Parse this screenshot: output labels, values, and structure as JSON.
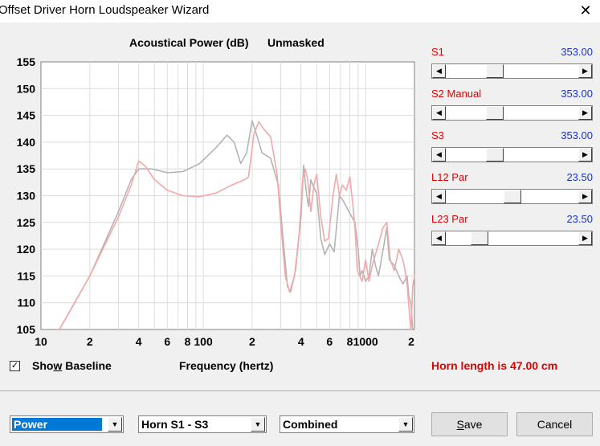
{
  "window": {
    "title": "Offset Driver Horn Loudspeaker Wizard",
    "close_glyph": "✕"
  },
  "chart_title": {
    "quantity": "Acoustical Power (dB)",
    "mode": "Unmasked"
  },
  "chart_data": {
    "type": "line",
    "xscale": "log",
    "xlim": [
      10,
      2000
    ],
    "ylim": [
      105,
      155
    ],
    "grid": true,
    "xlabel": "Frequency (hertz)",
    "ylabel": "",
    "y_ticks": [
      "155",
      "150",
      "145",
      "140",
      "135",
      "130",
      "125",
      "120",
      "115",
      "110",
      "105"
    ],
    "x_ticks": [
      {
        "v": 10,
        "label": "10"
      },
      {
        "v": 20,
        "label": "2"
      },
      {
        "v": 40,
        "label": "4"
      },
      {
        "v": 60,
        "label": "6"
      },
      {
        "v": 80,
        "label": "8"
      },
      {
        "v": 100,
        "label": "100"
      },
      {
        "v": 200,
        "label": "2"
      },
      {
        "v": 400,
        "label": "4"
      },
      {
        "v": 600,
        "label": "6"
      },
      {
        "v": 800,
        "label": "8"
      },
      {
        "v": 1000,
        "label": "1000"
      },
      {
        "v": 2000,
        "label": "2"
      }
    ],
    "series": [
      {
        "color": "#b4b4b4",
        "points": [
          [
            13,
            105
          ],
          [
            20,
            115
          ],
          [
            30,
            127
          ],
          [
            36,
            133
          ],
          [
            40,
            135
          ],
          [
            48,
            135
          ],
          [
            60,
            134.3
          ],
          [
            75,
            134.5
          ],
          [
            95,
            136
          ],
          [
            120,
            139
          ],
          [
            140,
            141.3
          ],
          [
            155,
            140
          ],
          [
            170,
            136
          ],
          [
            185,
            138
          ],
          [
            200,
            144
          ],
          [
            215,
            141
          ],
          [
            230,
            138
          ],
          [
            260,
            137
          ],
          [
            290,
            132
          ],
          [
            310,
            122
          ],
          [
            330,
            113
          ],
          [
            345,
            112
          ],
          [
            370,
            116
          ],
          [
            400,
            126
          ],
          [
            415,
            135.7
          ],
          [
            430,
            131
          ],
          [
            445,
            128
          ],
          [
            460,
            133
          ],
          [
            480,
            131.5
          ],
          [
            500,
            130.5
          ],
          [
            530,
            122
          ],
          [
            560,
            119
          ],
          [
            600,
            121
          ],
          [
            640,
            119.5
          ],
          [
            690,
            130
          ],
          [
            730,
            129
          ],
          [
            790,
            127
          ],
          [
            860,
            125
          ],
          [
            900,
            120
          ],
          [
            925,
            115
          ],
          [
            950,
            116
          ],
          [
            1000,
            114
          ],
          [
            1050,
            115
          ],
          [
            1100,
            120
          ],
          [
            1150,
            117
          ],
          [
            1200,
            115
          ],
          [
            1300,
            121
          ],
          [
            1350,
            124
          ],
          [
            1400,
            118
          ],
          [
            1500,
            117
          ],
          [
            1600,
            115
          ],
          [
            1700,
            113.5
          ],
          [
            1800,
            115
          ],
          [
            1850,
            111
          ],
          [
            1900,
            110
          ],
          [
            1950,
            105
          ]
        ]
      },
      {
        "color": "#f4a8a8",
        "points": [
          [
            13,
            105
          ],
          [
            20,
            115
          ],
          [
            30,
            126
          ],
          [
            36,
            132
          ],
          [
            40,
            136.5
          ],
          [
            44,
            135.5
          ],
          [
            50,
            133
          ],
          [
            60,
            131
          ],
          [
            75,
            130
          ],
          [
            95,
            129.8
          ],
          [
            120,
            130.5
          ],
          [
            150,
            132
          ],
          [
            180,
            133
          ],
          [
            190,
            133.5
          ],
          [
            205,
            141.5
          ],
          [
            220,
            143.8
          ],
          [
            235,
            142.5
          ],
          [
            260,
            141
          ],
          [
            285,
            134
          ],
          [
            300,
            125
          ],
          [
            320,
            115
          ],
          [
            340,
            112
          ],
          [
            365,
            115
          ],
          [
            390,
            123
          ],
          [
            410,
            133
          ],
          [
            425,
            135
          ],
          [
            440,
            133
          ],
          [
            460,
            127
          ],
          [
            480,
            132
          ],
          [
            500,
            134
          ],
          [
            530,
            126
          ],
          [
            560,
            121.5
          ],
          [
            590,
            122
          ],
          [
            630,
            130
          ],
          [
            660,
            134
          ],
          [
            690,
            130
          ],
          [
            720,
            132
          ],
          [
            760,
            131
          ],
          [
            800,
            133.5
          ],
          [
            830,
            129
          ],
          [
            860,
            124
          ],
          [
            890,
            116
          ],
          [
            950,
            114
          ],
          [
            1000,
            118
          ],
          [
            1050,
            114
          ],
          [
            1100,
            117
          ],
          [
            1200,
            121
          ],
          [
            1280,
            124
          ],
          [
            1350,
            125
          ],
          [
            1420,
            118
          ],
          [
            1500,
            116
          ],
          [
            1600,
            120
          ],
          [
            1700,
            118
          ],
          [
            1750,
            116
          ],
          [
            1800,
            113.5
          ],
          [
            1850,
            109
          ],
          [
            1900,
            105
          ],
          [
            1950,
            113
          ],
          [
            2000,
            115
          ]
        ]
      }
    ]
  },
  "params": [
    {
      "label": "S1",
      "value": "353.00",
      "position": 0.35
    },
    {
      "label": "S2  Manual",
      "value": "353.00",
      "position": 0.35
    },
    {
      "label": "S3",
      "value": "353.00",
      "position": 0.35
    },
    {
      "label": "L12  Par",
      "value": "23.50",
      "position": 0.5
    },
    {
      "label": "L23  Par",
      "value": "23.50",
      "position": 0.22
    }
  ],
  "show_baseline": {
    "checked": true,
    "check_glyph": "✓",
    "label_pre": "Sho",
    "label_ul": "w",
    "label_post": " Baseline"
  },
  "horn_length": "Horn length is 47.00 cm",
  "dropdowns": [
    {
      "value": "Power"
    },
    {
      "value": "Horn S1 - S3"
    },
    {
      "value": "Combined"
    }
  ],
  "buttons": {
    "save_ul": "S",
    "save_rest": "ave",
    "cancel": "Cancel"
  },
  "arrows": {
    "left": "◀",
    "right": "▶",
    "down": "▼"
  }
}
